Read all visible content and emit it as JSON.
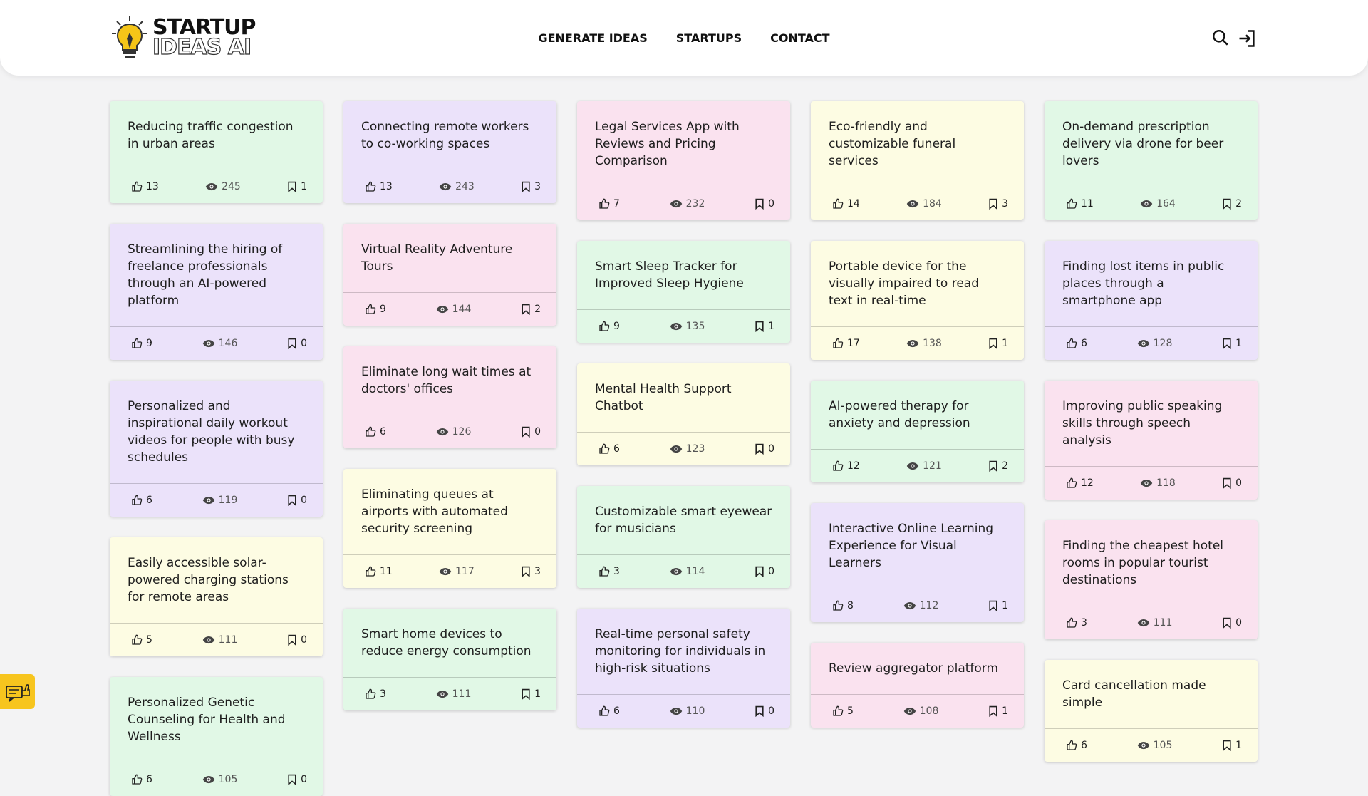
{
  "header": {
    "logo_top": "STARTUP",
    "logo_bottom": "IDEAS AI",
    "nav": [
      "GENERATE IDEAS",
      "STARTUPS",
      "CONTACT"
    ]
  },
  "columns": [
    [
      {
        "title": "Reducing traffic congestion in urban areas",
        "likes": 13,
        "views": 245,
        "saves": 1,
        "color": "green"
      },
      {
        "title": "Streamlining the hiring of freelance professionals through an AI-powered platform",
        "likes": 9,
        "views": 146,
        "saves": 0,
        "color": "purple"
      },
      {
        "title": "Personalized and inspirational daily workout videos for people with busy schedules",
        "likes": 6,
        "views": 119,
        "saves": 0,
        "color": "purple"
      },
      {
        "title": "Easily accessible solar-powered charging stations for remote areas",
        "likes": 5,
        "views": 111,
        "saves": 0,
        "color": "yellow"
      },
      {
        "title": "Personalized Genetic Counseling for Health and Wellness",
        "likes": 6,
        "views": 105,
        "saves": 0,
        "color": "green"
      }
    ],
    [
      {
        "title": "Connecting remote workers to co-working spaces",
        "likes": 13,
        "views": 243,
        "saves": 3,
        "color": "purple"
      },
      {
        "title": "Virtual Reality Adventure Tours",
        "likes": 9,
        "views": 144,
        "saves": 2,
        "color": "pink"
      },
      {
        "title": "Eliminate long wait times at doctors' offices",
        "likes": 6,
        "views": 126,
        "saves": 0,
        "color": "pink"
      },
      {
        "title": "Eliminating queues at airports with automated security screening",
        "likes": 11,
        "views": 117,
        "saves": 3,
        "color": "yellow"
      },
      {
        "title": "Smart home devices to reduce energy consumption",
        "likes": 3,
        "views": 111,
        "saves": 1,
        "color": "green"
      }
    ],
    [
      {
        "title": "Legal Services App with Reviews and Pricing Comparison",
        "likes": 7,
        "views": 232,
        "saves": 0,
        "color": "pink"
      },
      {
        "title": "Smart Sleep Tracker for Improved Sleep Hygiene",
        "likes": 9,
        "views": 135,
        "saves": 1,
        "color": "green"
      },
      {
        "title": "Mental Health Support Chatbot",
        "likes": 6,
        "views": 123,
        "saves": 0,
        "color": "yellow"
      },
      {
        "title": "Customizable smart eyewear for musicians",
        "likes": 3,
        "views": 114,
        "saves": 0,
        "color": "green"
      },
      {
        "title": "Real-time personal safety monitoring for individuals in high-risk situations",
        "likes": 6,
        "views": 110,
        "saves": 0,
        "color": "purple"
      }
    ],
    [
      {
        "title": "Eco-friendly and customizable funeral services",
        "likes": 14,
        "views": 184,
        "saves": 3,
        "color": "yellow"
      },
      {
        "title": "Portable device for the visually impaired to read text in real-time",
        "likes": 17,
        "views": 138,
        "saves": 1,
        "color": "yellow"
      },
      {
        "title": "AI-powered therapy for anxiety and depression",
        "likes": 12,
        "views": 121,
        "saves": 2,
        "color": "green"
      },
      {
        "title": "Interactive Online Learning Experience for Visual Learners",
        "likes": 8,
        "views": 112,
        "saves": 1,
        "color": "purple"
      },
      {
        "title": "Review aggregator platform",
        "likes": 5,
        "views": 108,
        "saves": 1,
        "color": "pink"
      }
    ],
    [
      {
        "title": "On-demand prescription delivery via drone for beer lovers",
        "likes": 11,
        "views": 164,
        "saves": 2,
        "color": "green"
      },
      {
        "title": "Finding lost items in public places through a smartphone app",
        "likes": 6,
        "views": 128,
        "saves": 1,
        "color": "purple"
      },
      {
        "title": "Improving public speaking skills through speech analysis",
        "likes": 12,
        "views": 118,
        "saves": 0,
        "color": "pink"
      },
      {
        "title": "Finding the cheapest hotel rooms in popular tourist destinations",
        "likes": 3,
        "views": 111,
        "saves": 0,
        "color": "pink"
      },
      {
        "title": "Card cancellation made simple",
        "likes": 6,
        "views": 105,
        "saves": 1,
        "color": "yellow"
      }
    ]
  ]
}
